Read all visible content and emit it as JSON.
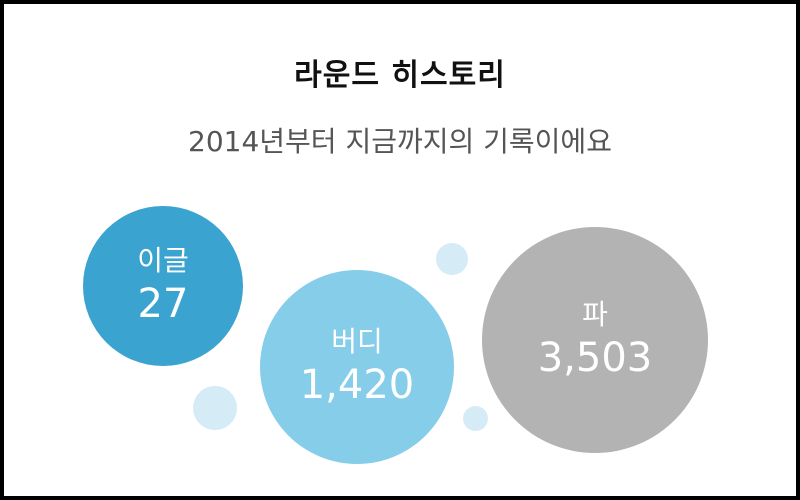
{
  "header": {
    "title": "라운드 히스토리",
    "subtitle": "2014년부터 지금까지의 기록이에요"
  },
  "colors": {
    "eagle": "#3aa3cf",
    "birdie": "#86cdea",
    "par": "#b3b3b3",
    "dot": "#d5ebf6"
  },
  "stats": [
    {
      "label": "이글",
      "value": "27"
    },
    {
      "label": "버디",
      "value": "1,420"
    },
    {
      "label": "파",
      "value": "3,503"
    }
  ]
}
